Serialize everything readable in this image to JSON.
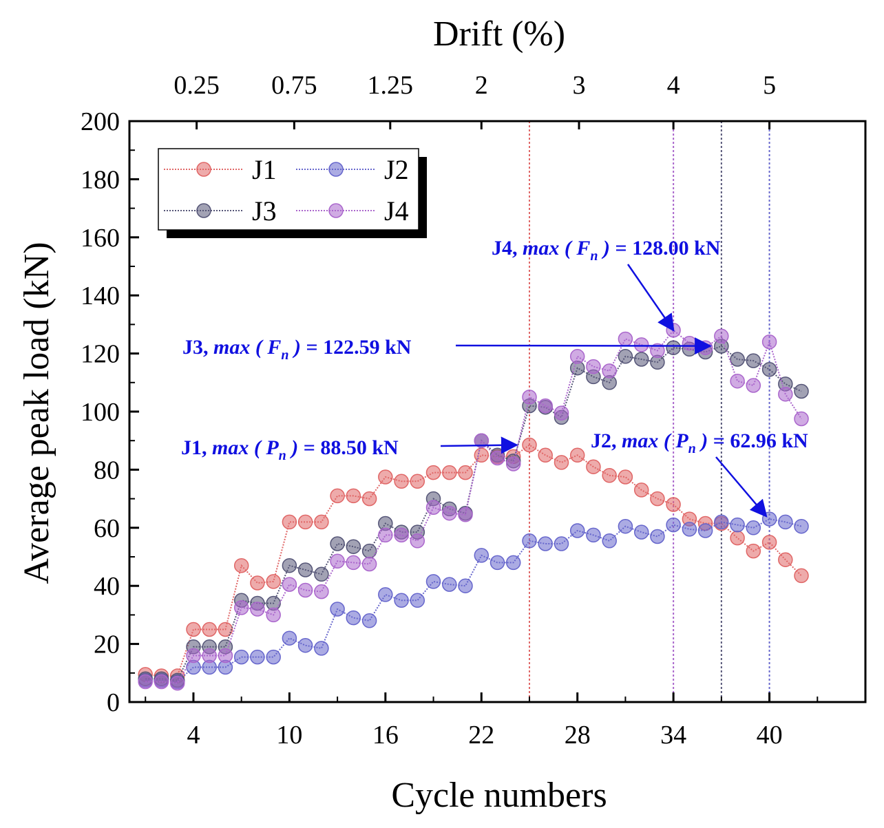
{
  "chart_data": {
    "type": "line",
    "xlabel": "Cycle numbers",
    "ylabel": "Average peak load (kN)",
    "top_axis_label": "Drift (%)",
    "xlim": [
      0,
      46
    ],
    "ylim": [
      0,
      200
    ],
    "x_ticks": [
      4,
      10,
      16,
      22,
      28,
      34,
      40
    ],
    "y_ticks": [
      0,
      20,
      40,
      60,
      80,
      100,
      120,
      140,
      160,
      180,
      200
    ],
    "top_ticks": [
      {
        "cycle": 4.2,
        "label": "0.25"
      },
      {
        "cycle": 10.3,
        "label": "0.75"
      },
      {
        "cycle": 16.3,
        "label": "1.25"
      },
      {
        "cycle": 22,
        "label": "2"
      },
      {
        "cycle": 28.1,
        "label": "3"
      },
      {
        "cycle": 34,
        "label": "4"
      },
      {
        "cycle": 40,
        "label": "5"
      }
    ],
    "series": [
      {
        "name": "J1",
        "color": "#e06666",
        "x": [
          1,
          2,
          3,
          4,
          5,
          6,
          7,
          8,
          9,
          10,
          11,
          12,
          13,
          14,
          15,
          16,
          17,
          18,
          19,
          20,
          21,
          22,
          23,
          24,
          25,
          26,
          27,
          28,
          29,
          30,
          31,
          32,
          33,
          34,
          35,
          36,
          37,
          38,
          39,
          40,
          41,
          42
        ],
        "y": [
          9.5,
          9,
          9,
          25,
          25,
          25,
          47,
          41,
          41.5,
          62,
          62,
          62,
          71,
          71,
          70,
          77.5,
          76,
          76,
          79,
          79,
          79,
          85,
          84.5,
          84.5,
          88.5,
          85,
          82.5,
          85,
          81,
          78,
          77.5,
          73,
          70,
          68,
          63,
          61.5,
          61.5,
          56.5,
          52,
          55,
          49,
          43.5
        ]
      },
      {
        "name": "J2",
        "color": "#6666cc",
        "x": [
          1,
          2,
          3,
          4,
          5,
          6,
          7,
          8,
          9,
          10,
          11,
          12,
          13,
          14,
          15,
          16,
          17,
          18,
          19,
          20,
          21,
          22,
          23,
          24,
          25,
          26,
          27,
          28,
          29,
          30,
          31,
          32,
          33,
          34,
          35,
          36,
          37,
          38,
          39,
          40,
          41,
          42
        ],
        "y": [
          7.5,
          7.5,
          7,
          12,
          12,
          12,
          15.5,
          15.5,
          15.5,
          22,
          19.5,
          18.5,
          32,
          29,
          28,
          37,
          35,
          35,
          41.5,
          40.5,
          40,
          50.5,
          48,
          48,
          55.5,
          54.5,
          54.5,
          59,
          57.5,
          55.5,
          60.5,
          58.5,
          57,
          61,
          59.5,
          59,
          62,
          61,
          60,
          63,
          62,
          60.5
        ]
      },
      {
        "name": "J3",
        "color": "#555577",
        "x": [
          1,
          2,
          3,
          4,
          5,
          6,
          7,
          8,
          9,
          10,
          11,
          12,
          13,
          14,
          15,
          16,
          17,
          18,
          19,
          20,
          21,
          22,
          23,
          24,
          25,
          26,
          27,
          28,
          29,
          30,
          31,
          32,
          33,
          34,
          35,
          36,
          37,
          38,
          39,
          40,
          41,
          42
        ],
        "y": [
          8,
          8,
          7.5,
          19,
          19,
          19,
          35,
          34,
          34,
          47,
          45.5,
          44,
          54.5,
          53.5,
          52,
          61.5,
          58.5,
          58.5,
          70,
          66.5,
          65,
          90,
          85,
          83,
          102,
          101.5,
          98,
          115,
          112,
          110,
          119,
          118,
          117,
          122,
          121.5,
          120.5,
          122.5,
          118,
          117.5,
          114.5,
          109.5,
          107
        ]
      },
      {
        "name": "J4",
        "color": "#aa66cc",
        "x": [
          1,
          2,
          3,
          4,
          5,
          6,
          7,
          8,
          9,
          10,
          11,
          12,
          13,
          14,
          15,
          16,
          17,
          18,
          19,
          20,
          21,
          22,
          23,
          24,
          25,
          26,
          27,
          28,
          29,
          30,
          31,
          32,
          33,
          34,
          35,
          36,
          37,
          38,
          39,
          40,
          41,
          42
        ],
        "y": [
          7,
          7,
          6.5,
          16,
          16,
          16,
          32.5,
          32,
          30,
          40.5,
          38.5,
          38,
          48.5,
          48,
          47.5,
          57.5,
          57.5,
          55.5,
          67,
          65,
          64.5,
          90,
          84,
          82,
          105,
          102,
          99.5,
          119,
          115.5,
          114,
          125,
          123,
          121,
          128,
          123.5,
          122,
          126,
          110.5,
          109,
          124,
          106,
          97.5
        ]
      }
    ],
    "vertical_lines": [
      {
        "x": 25,
        "color": "#e06666"
      },
      {
        "x": 34,
        "color": "#aa66cc"
      },
      {
        "x": 37,
        "color": "#555577"
      },
      {
        "x": 40,
        "color": "#6666cc"
      }
    ],
    "annotations": [
      {
        "id": "j4",
        "prefix": "J4, ",
        "fn": "max",
        "sym": "F",
        "sub": "n",
        "value": " = 128.00 kN",
        "arrow_to": [
          34,
          128
        ]
      },
      {
        "id": "j3",
        "prefix": "J3, ",
        "fn": "max",
        "sym": "F",
        "sub": "n",
        "value": " = 122.59 kN",
        "arrow_to": [
          36.3,
          122.59
        ]
      },
      {
        "id": "j1",
        "prefix": "J1, ",
        "fn": "max",
        "sym": "P",
        "sub": "n",
        "value": " = 88.50 kN",
        "arrow_to": [
          24.2,
          88.5
        ]
      },
      {
        "id": "j2",
        "prefix": "J2, ",
        "fn": "max",
        "sym": "P",
        "sub": "n",
        "value": " = 62.96 kN",
        "arrow_to": [
          39.8,
          64
        ]
      }
    ],
    "legend": {
      "position": "top-left",
      "entries": [
        "J1",
        "J2",
        "J3",
        "J4"
      ]
    }
  }
}
